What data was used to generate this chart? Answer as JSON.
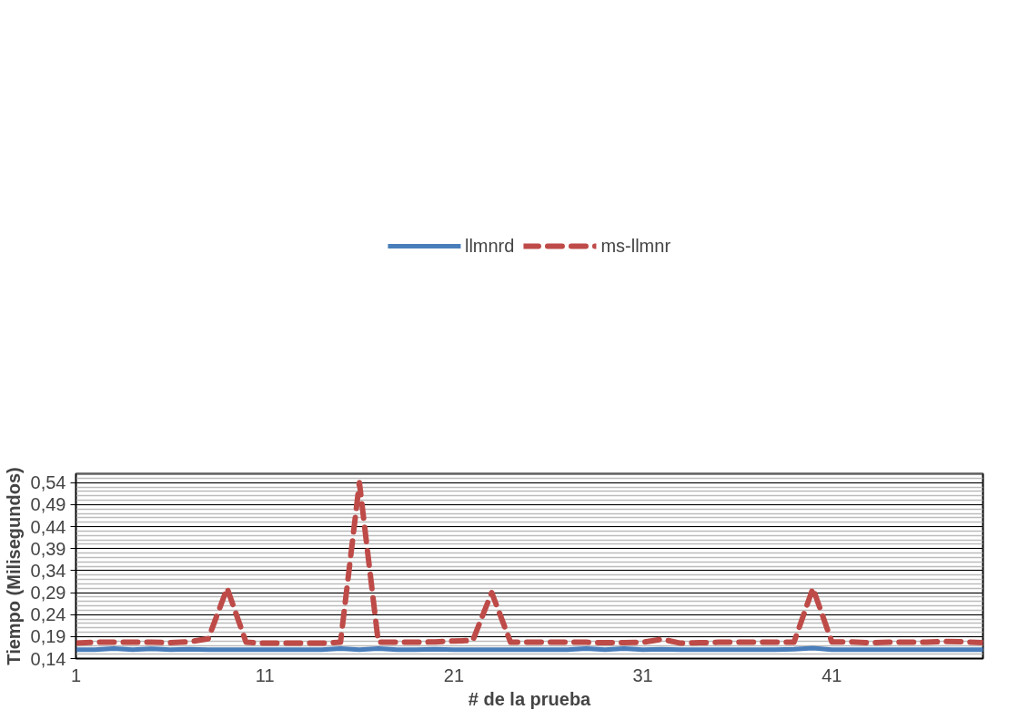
{
  "chart_data": {
    "type": "line",
    "xlabel": "# de la prueba",
    "ylabel": "Tiempo (Milisegundos)",
    "x": [
      1,
      2,
      3,
      4,
      5,
      6,
      7,
      8,
      9,
      10,
      11,
      12,
      13,
      14,
      15,
      16,
      17,
      18,
      19,
      20,
      21,
      22,
      23,
      24,
      25,
      26,
      27,
      28,
      29,
      30,
      31,
      32,
      33,
      34,
      35,
      36,
      37,
      38,
      39,
      40,
      41,
      42,
      43,
      44,
      45,
      46,
      47,
      48,
      49
    ],
    "xlim": [
      1,
      49
    ],
    "xticks": [
      1,
      11,
      21,
      31,
      41
    ],
    "ylim": [
      0.14,
      0.56
    ],
    "yticks": [
      {
        "value": 0.14,
        "label": "0,14"
      },
      {
        "value": 0.19,
        "label": "0,19"
      },
      {
        "value": 0.24,
        "label": "0,24"
      },
      {
        "value": 0.29,
        "label": "0,29"
      },
      {
        "value": 0.34,
        "label": "0,34"
      },
      {
        "value": 0.39,
        "label": "0,39"
      },
      {
        "value": 0.44,
        "label": "0,44"
      },
      {
        "value": 0.49,
        "label": "0,49"
      },
      {
        "value": 0.54,
        "label": "0,54"
      }
    ],
    "grid": "y",
    "legend": "top",
    "series": [
      {
        "name": "llmnrd",
        "color": "#4a7ebb",
        "line_style": "solid",
        "values": [
          0.16,
          0.16,
          0.163,
          0.16,
          0.162,
          0.16,
          0.161,
          0.16,
          0.16,
          0.16,
          0.16,
          0.16,
          0.16,
          0.16,
          0.163,
          0.16,
          0.163,
          0.16,
          0.16,
          0.161,
          0.16,
          0.16,
          0.16,
          0.16,
          0.16,
          0.16,
          0.16,
          0.163,
          0.16,
          0.163,
          0.16,
          0.161,
          0.16,
          0.16,
          0.16,
          0.16,
          0.16,
          0.16,
          0.161,
          0.164,
          0.16,
          0.16,
          0.16,
          0.16,
          0.16,
          0.16,
          0.16,
          0.16,
          0.16
        ]
      },
      {
        "name": "ms-llmnr",
        "color": "#be4b48",
        "line_style": "dashed",
        "values": [
          0.175,
          0.177,
          0.177,
          0.177,
          0.177,
          0.176,
          0.178,
          0.185,
          0.3,
          0.177,
          0.175,
          0.175,
          0.175,
          0.175,
          0.177,
          0.54,
          0.177,
          0.177,
          0.177,
          0.178,
          0.18,
          0.181,
          0.29,
          0.177,
          0.177,
          0.177,
          0.177,
          0.177,
          0.176,
          0.176,
          0.177,
          0.184,
          0.175,
          0.176,
          0.177,
          0.177,
          0.177,
          0.177,
          0.177,
          0.3,
          0.178,
          0.178,
          0.176,
          0.177,
          0.177,
          0.177,
          0.179,
          0.178,
          0.176
        ]
      }
    ]
  }
}
